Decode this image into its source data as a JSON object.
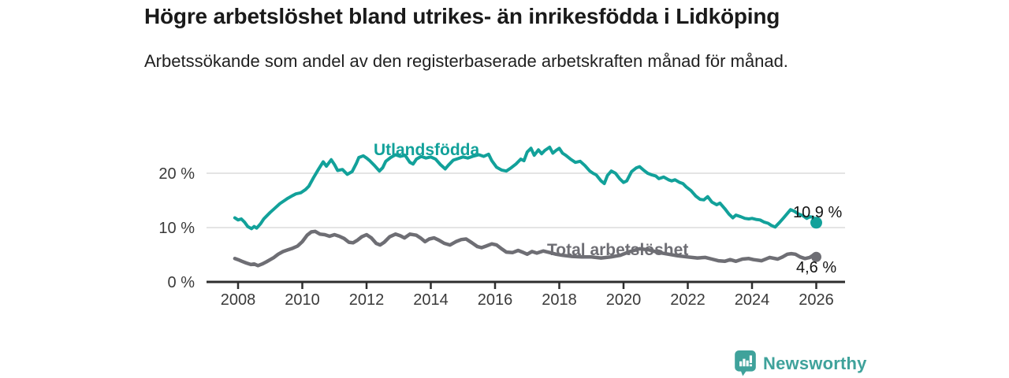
{
  "header": {
    "title": "Högre arbetslöshet bland utrikes- än inrikesfödda i Lidköping",
    "subtitle": "Arbetssökande som andel av den registerbaserade arbetskraften månad för månad."
  },
  "branding": {
    "name": "Newsworthy",
    "color": "#3fa29b"
  },
  "chart_data": {
    "type": "line",
    "title": "Högre arbetslöshet bland utrikes- än inrikesfödda i Lidköping",
    "subtitle": "Arbetssökande som andel av den registerbaserade arbetskraften månad för månad.",
    "xlabel": "",
    "ylabel": "",
    "unit": "%",
    "grid": "horizontal",
    "legend": "inline-series-labels",
    "x_axis": {
      "range": [
        2007.9,
        2026.9
      ],
      "tick_years": [
        2008,
        2010,
        2012,
        2014,
        2016,
        2018,
        2020,
        2022,
        2024,
        2026
      ],
      "tick_labels": [
        "2008",
        "2010",
        "2012",
        "2014",
        "2016",
        "2018",
        "2020",
        "2022",
        "2024",
        "2026"
      ]
    },
    "y_axis": {
      "range": [
        0,
        26
      ],
      "tick_values": [
        0,
        10,
        20
      ],
      "tick_labels": [
        "0 %",
        "10 %",
        "20 %"
      ]
    },
    "series": [
      {
        "name": "Utlandsfödda",
        "color": "#12a19a",
        "end_value": 10.9,
        "end_value_label": "10,9 %",
        "points": [
          [
            2007.9,
            11.8
          ],
          [
            2008.0,
            11.4
          ],
          [
            2008.1,
            11.6
          ],
          [
            2008.2,
            11.0
          ],
          [
            2008.3,
            10.2
          ],
          [
            2008.42,
            9.8
          ],
          [
            2008.5,
            10.2
          ],
          [
            2008.58,
            9.9
          ],
          [
            2008.7,
            10.7
          ],
          [
            2008.8,
            11.6
          ],
          [
            2008.9,
            12.2
          ],
          [
            2009.0,
            12.8
          ],
          [
            2009.15,
            13.6
          ],
          [
            2009.3,
            14.4
          ],
          [
            2009.45,
            15.0
          ],
          [
            2009.55,
            15.4
          ],
          [
            2009.7,
            15.9
          ],
          [
            2009.8,
            16.2
          ],
          [
            2009.95,
            16.4
          ],
          [
            2010.1,
            17.0
          ],
          [
            2010.2,
            17.6
          ],
          [
            2010.35,
            19.2
          ],
          [
            2010.5,
            20.7
          ],
          [
            2010.65,
            22.1
          ],
          [
            2010.75,
            21.3
          ],
          [
            2010.9,
            22.5
          ],
          [
            2011.0,
            21.6
          ],
          [
            2011.1,
            20.5
          ],
          [
            2011.25,
            20.7
          ],
          [
            2011.4,
            19.8
          ],
          [
            2011.55,
            20.3
          ],
          [
            2011.68,
            21.8
          ],
          [
            2011.76,
            22.9
          ],
          [
            2011.9,
            23.2
          ],
          [
            2012.0,
            22.8
          ],
          [
            2012.1,
            22.3
          ],
          [
            2012.25,
            21.4
          ],
          [
            2012.4,
            20.4
          ],
          [
            2012.5,
            21.0
          ],
          [
            2012.6,
            22.2
          ],
          [
            2012.75,
            22.9
          ],
          [
            2012.9,
            23.4
          ],
          [
            2013.05,
            23.1
          ],
          [
            2013.2,
            23.3
          ],
          [
            2013.35,
            22.0
          ],
          [
            2013.45,
            21.7
          ],
          [
            2013.55,
            22.6
          ],
          [
            2013.7,
            23.1
          ],
          [
            2013.85,
            22.8
          ],
          [
            2014.0,
            23.0
          ],
          [
            2014.15,
            22.6
          ],
          [
            2014.3,
            21.6
          ],
          [
            2014.45,
            20.8
          ],
          [
            2014.55,
            21.5
          ],
          [
            2014.7,
            22.4
          ],
          [
            2014.85,
            22.7
          ],
          [
            2015.0,
            23.0
          ],
          [
            2015.15,
            22.8
          ],
          [
            2015.3,
            23.1
          ],
          [
            2015.5,
            23.4
          ],
          [
            2015.65,
            23.1
          ],
          [
            2015.8,
            23.5
          ],
          [
            2015.9,
            22.3
          ],
          [
            2016.05,
            21.1
          ],
          [
            2016.2,
            20.6
          ],
          [
            2016.35,
            20.4
          ],
          [
            2016.5,
            21.0
          ],
          [
            2016.65,
            21.7
          ],
          [
            2016.8,
            22.6
          ],
          [
            2016.9,
            22.3
          ],
          [
            2017.0,
            23.9
          ],
          [
            2017.12,
            24.6
          ],
          [
            2017.22,
            23.3
          ],
          [
            2017.35,
            24.3
          ],
          [
            2017.45,
            23.6
          ],
          [
            2017.55,
            24.2
          ],
          [
            2017.7,
            24.8
          ],
          [
            2017.8,
            23.7
          ],
          [
            2017.9,
            24.2
          ],
          [
            2018.0,
            24.6
          ],
          [
            2018.1,
            23.7
          ],
          [
            2018.2,
            23.3
          ],
          [
            2018.35,
            22.6
          ],
          [
            2018.5,
            22.0
          ],
          [
            2018.65,
            22.2
          ],
          [
            2018.8,
            21.4
          ],
          [
            2018.95,
            20.4
          ],
          [
            2019.05,
            20.0
          ],
          [
            2019.15,
            19.7
          ],
          [
            2019.3,
            18.6
          ],
          [
            2019.4,
            18.1
          ],
          [
            2019.5,
            19.6
          ],
          [
            2019.62,
            20.4
          ],
          [
            2019.75,
            20.0
          ],
          [
            2019.88,
            19.0
          ],
          [
            2020.0,
            18.3
          ],
          [
            2020.1,
            18.6
          ],
          [
            2020.25,
            20.3
          ],
          [
            2020.4,
            21.0
          ],
          [
            2020.5,
            21.2
          ],
          [
            2020.62,
            20.6
          ],
          [
            2020.75,
            20.0
          ],
          [
            2020.88,
            19.7
          ],
          [
            2021.0,
            19.5
          ],
          [
            2021.1,
            19.0
          ],
          [
            2021.25,
            19.3
          ],
          [
            2021.4,
            18.8
          ],
          [
            2021.5,
            18.6
          ],
          [
            2021.6,
            18.8
          ],
          [
            2021.75,
            18.3
          ],
          [
            2021.85,
            18.1
          ],
          [
            2021.95,
            17.5
          ],
          [
            2022.1,
            16.8
          ],
          [
            2022.25,
            15.8
          ],
          [
            2022.38,
            15.2
          ],
          [
            2022.5,
            15.1
          ],
          [
            2022.62,
            15.7
          ],
          [
            2022.75,
            14.7
          ],
          [
            2022.9,
            14.2
          ],
          [
            2023.0,
            14.5
          ],
          [
            2023.15,
            13.5
          ],
          [
            2023.28,
            12.5
          ],
          [
            2023.4,
            11.8
          ],
          [
            2023.5,
            12.3
          ],
          [
            2023.65,
            12.0
          ],
          [
            2023.78,
            11.7
          ],
          [
            2023.9,
            11.6
          ],
          [
            2024.0,
            11.7
          ],
          [
            2024.12,
            11.5
          ],
          [
            2024.25,
            11.4
          ],
          [
            2024.38,
            11.0
          ],
          [
            2024.5,
            10.8
          ],
          [
            2024.6,
            10.4
          ],
          [
            2024.72,
            10.1
          ],
          [
            2024.85,
            10.9
          ],
          [
            2024.97,
            11.7
          ],
          [
            2025.1,
            12.6
          ],
          [
            2025.2,
            13.3
          ],
          [
            2025.32,
            13.0
          ],
          [
            2025.45,
            12.5
          ],
          [
            2025.58,
            12.2
          ],
          [
            2025.7,
            11.7
          ],
          [
            2025.8,
            12.0
          ],
          [
            2025.9,
            11.9
          ],
          [
            2026.0,
            10.9
          ]
        ]
      },
      {
        "name": "Total arbetslöshet",
        "color": "#6e6e74",
        "end_value": 4.6,
        "end_value_label": "4,6 %",
        "points": [
          [
            2007.9,
            4.3
          ],
          [
            2008.0,
            4.1
          ],
          [
            2008.12,
            3.8
          ],
          [
            2008.25,
            3.5
          ],
          [
            2008.4,
            3.2
          ],
          [
            2008.5,
            3.3
          ],
          [
            2008.62,
            3.0
          ],
          [
            2008.75,
            3.3
          ],
          [
            2008.88,
            3.7
          ],
          [
            2009.0,
            4.1
          ],
          [
            2009.12,
            4.5
          ],
          [
            2009.25,
            5.1
          ],
          [
            2009.4,
            5.6
          ],
          [
            2009.55,
            5.9
          ],
          [
            2009.7,
            6.2
          ],
          [
            2009.85,
            6.6
          ],
          [
            2010.0,
            7.4
          ],
          [
            2010.15,
            8.6
          ],
          [
            2010.28,
            9.2
          ],
          [
            2010.4,
            9.3
          ],
          [
            2010.55,
            8.8
          ],
          [
            2010.7,
            8.7
          ],
          [
            2010.85,
            8.4
          ],
          [
            2011.0,
            8.7
          ],
          [
            2011.15,
            8.4
          ],
          [
            2011.3,
            8.0
          ],
          [
            2011.45,
            7.3
          ],
          [
            2011.58,
            7.2
          ],
          [
            2011.72,
            7.7
          ],
          [
            2011.85,
            8.3
          ],
          [
            2012.0,
            8.7
          ],
          [
            2012.15,
            8.1
          ],
          [
            2012.3,
            7.1
          ],
          [
            2012.42,
            6.8
          ],
          [
            2012.55,
            7.3
          ],
          [
            2012.72,
            8.3
          ],
          [
            2012.9,
            8.8
          ],
          [
            2013.05,
            8.5
          ],
          [
            2013.18,
            8.1
          ],
          [
            2013.35,
            8.8
          ],
          [
            2013.55,
            8.6
          ],
          [
            2013.7,
            8.0
          ],
          [
            2013.82,
            7.4
          ],
          [
            2013.95,
            7.9
          ],
          [
            2014.1,
            8.1
          ],
          [
            2014.25,
            7.7
          ],
          [
            2014.42,
            7.1
          ],
          [
            2014.6,
            6.8
          ],
          [
            2014.78,
            7.4
          ],
          [
            2014.95,
            7.8
          ],
          [
            2015.1,
            7.9
          ],
          [
            2015.28,
            7.2
          ],
          [
            2015.45,
            6.5
          ],
          [
            2015.58,
            6.3
          ],
          [
            2015.72,
            6.6
          ],
          [
            2015.9,
            7.0
          ],
          [
            2016.05,
            6.8
          ],
          [
            2016.2,
            6.1
          ],
          [
            2016.35,
            5.5
          ],
          [
            2016.55,
            5.4
          ],
          [
            2016.72,
            5.8
          ],
          [
            2016.85,
            5.5
          ],
          [
            2017.0,
            5.1
          ],
          [
            2017.15,
            5.6
          ],
          [
            2017.3,
            5.3
          ],
          [
            2017.5,
            5.7
          ],
          [
            2017.7,
            5.4
          ],
          [
            2017.9,
            5.1
          ],
          [
            2018.1,
            4.9
          ],
          [
            2018.4,
            4.7
          ],
          [
            2018.7,
            4.6
          ],
          [
            2019.0,
            4.6
          ],
          [
            2019.3,
            4.4
          ],
          [
            2019.6,
            4.6
          ],
          [
            2019.9,
            4.9
          ],
          [
            2020.2,
            5.6
          ],
          [
            2020.5,
            6.1
          ],
          [
            2020.8,
            5.9
          ],
          [
            2021.1,
            5.4
          ],
          [
            2021.4,
            5.1
          ],
          [
            2021.7,
            4.8
          ],
          [
            2022.0,
            4.6
          ],
          [
            2022.3,
            4.4
          ],
          [
            2022.55,
            4.5
          ],
          [
            2022.75,
            4.2
          ],
          [
            2022.95,
            3.9
          ],
          [
            2023.15,
            3.8
          ],
          [
            2023.32,
            4.1
          ],
          [
            2023.5,
            3.8
          ],
          [
            2023.7,
            4.2
          ],
          [
            2023.9,
            4.3
          ],
          [
            2024.05,
            4.1
          ],
          [
            2024.3,
            3.9
          ],
          [
            2024.55,
            4.5
          ],
          [
            2024.8,
            4.2
          ],
          [
            2024.95,
            4.6
          ],
          [
            2025.1,
            5.1
          ],
          [
            2025.22,
            5.2
          ],
          [
            2025.35,
            5.1
          ],
          [
            2025.5,
            4.6
          ],
          [
            2025.65,
            4.3
          ],
          [
            2025.8,
            4.5
          ],
          [
            2025.9,
            4.9
          ],
          [
            2026.0,
            4.6
          ]
        ]
      }
    ]
  }
}
